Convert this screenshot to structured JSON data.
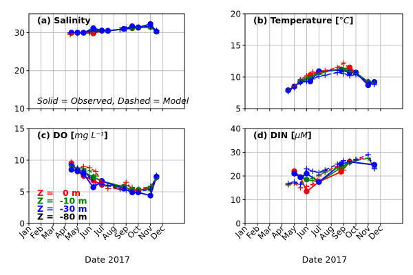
{
  "figure": {
    "note": "Solid = Observed, Dashed = Model",
    "xlabel": "Date 2017",
    "legend": [
      {
        "label": "Z =   0 m",
        "color": "#ff0000"
      },
      {
        "label": "Z =  -10 m",
        "color": "#008000"
      },
      {
        "label": "Z =  -30 m",
        "color": "#0000ff"
      },
      {
        "label": "Z =  -80 m",
        "color": "#000000"
      }
    ]
  },
  "chart_data": [
    {
      "type": "line",
      "title": "(a) Salinity",
      "unit": "",
      "xlabel": "",
      "ylabel": "",
      "x_ticks": [],
      "ylim": [
        10,
        35
      ],
      "y_ticks": [
        10,
        20,
        30
      ],
      "grid": true,
      "series": [
        {
          "name": "Z = 0 m",
          "style": "observed",
          "color": "#ff0000",
          "x": [
            3.5,
            4,
            4.5,
            5.3,
            6,
            6.5,
            7.8,
            8.5,
            9,
            10,
            10.5
          ],
          "y": [
            30,
            30,
            30,
            29.8,
            30.5,
            30.5,
            31,
            31.2,
            31.3,
            31.5,
            30.3
          ]
        },
        {
          "name": "Z = -10 m",
          "style": "observed",
          "color": "#008000",
          "x": [
            3.5,
            4,
            4.5,
            5.3,
            6,
            6.5,
            7.8,
            8.5,
            9,
            10,
            10.5
          ],
          "y": [
            30,
            30,
            30,
            30.8,
            30.6,
            30.5,
            31,
            31.2,
            31.4,
            31.5,
            30.3
          ]
        },
        {
          "name": "Z = -30 m",
          "style": "observed",
          "color": "#0000ff",
          "x": [
            3.5,
            4,
            4.5,
            5.3,
            6,
            6.5,
            7.8,
            8.5,
            9,
            10,
            10.5
          ],
          "y": [
            30,
            30,
            30,
            31.2,
            30.6,
            30.5,
            31,
            31.7,
            31.4,
            32.3,
            30.3
          ]
        },
        {
          "name": "Z = 0 m",
          "style": "model",
          "color": "#ff0000",
          "x": [
            3.4,
            4,
            4.5,
            5,
            5.5,
            6,
            6.5,
            7.5,
            8,
            8.5,
            9,
            10,
            10.5
          ],
          "y": [
            29.5,
            29.8,
            30,
            30,
            30.3,
            30.5,
            30.5,
            30.8,
            31,
            31.2,
            31.3,
            31.5,
            30.5
          ]
        },
        {
          "name": "Z = -10 m",
          "style": "model",
          "color": "#008000",
          "x": [
            3.4,
            4,
            4.5,
            5,
            5.5,
            6,
            6.5,
            7.5,
            8,
            8.5,
            9,
            10,
            10.5
          ],
          "y": [
            29.8,
            29.8,
            30,
            30.2,
            30.3,
            30.5,
            30.5,
            30.8,
            31,
            31.2,
            31.3,
            31.4,
            30.5
          ]
        },
        {
          "name": "Z = -30 m",
          "style": "model",
          "color": "#0000ff",
          "x": [
            3.4,
            4,
            4.5,
            5,
            5.5,
            6,
            6.5,
            7.5,
            8,
            8.5,
            9,
            10,
            10.5
          ],
          "y": [
            30,
            30,
            30,
            30.3,
            30.4,
            30.5,
            30.6,
            30.8,
            31,
            31.3,
            31.5,
            31.7,
            30.6
          ]
        }
      ]
    },
    {
      "type": "line",
      "title": "(b) Temperature [°C]",
      "unit": "°C",
      "xlabel": "",
      "ylabel": "",
      "x_ticks": [],
      "ylim": [
        5,
        20
      ],
      "y_ticks": [
        5,
        10,
        15,
        20
      ],
      "grid": true,
      "series": [
        {
          "name": "Z = 0 m",
          "style": "observed",
          "color": "#ff0000",
          "x": [
            3.5,
            4,
            4.5,
            5.3,
            6,
            7.8,
            8.5,
            9,
            10,
            10.5
          ],
          "y": [
            7.9,
            8.5,
            9.3,
            10.3,
            10.8,
            11.2,
            11.5,
            10.7,
            9.2,
            9.2
          ]
        },
        {
          "name": "Z = -10 m",
          "style": "observed",
          "color": "#008000",
          "x": [
            3.5,
            4,
            4.5,
            5.3,
            6,
            7.8,
            8.5,
            9,
            10,
            10.5
          ],
          "y": [
            7.9,
            8.5,
            9.3,
            9.8,
            10.9,
            11.2,
            11.0,
            10.7,
            9.2,
            9.2
          ]
        },
        {
          "name": "Z = -30 m",
          "style": "observed",
          "color": "#0000ff",
          "x": [
            3.5,
            4,
            4.5,
            5.3,
            6,
            7.8,
            8.5,
            9,
            10,
            10.5
          ],
          "y": [
            7.9,
            8.5,
            9.3,
            9.3,
            10.9,
            11.1,
            10.7,
            10.7,
            8.7,
            9.2
          ]
        },
        {
          "name": "Z = 0 m",
          "style": "model",
          "color": "#ff0000",
          "x": [
            3.5,
            4,
            4.5,
            5,
            5.5,
            6,
            6.5,
            7.5,
            8,
            8.5,
            9,
            10,
            10.5
          ],
          "y": [
            7.8,
            8.5,
            9.6,
            10.2,
            10.8,
            10.6,
            11,
            11.5,
            12.2,
            11.3,
            10.6,
            9.1,
            9
          ]
        },
        {
          "name": "Z = -10 m",
          "style": "model",
          "color": "#008000",
          "x": [
            3.5,
            4,
            4.5,
            5,
            5.5,
            6,
            6.5,
            7.5,
            8,
            8.5,
            9,
            10,
            10.5
          ],
          "y": [
            7.8,
            8.4,
            9.4,
            9.8,
            10.2,
            10.4,
            10.8,
            11.2,
            11.4,
            10.9,
            10.6,
            9.3,
            9
          ]
        },
        {
          "name": "Z = -30 m",
          "style": "model",
          "color": "#0000ff",
          "x": [
            3.5,
            4,
            4.5,
            5,
            5.5,
            6,
            6.5,
            7.5,
            8,
            8.5,
            9,
            10,
            10.5
          ],
          "y": [
            7.7,
            8.3,
            9.1,
            9.3,
            9.7,
            10.1,
            10.3,
            10.7,
            10.5,
            10.2,
            10.4,
            9.2,
            8.8
          ]
        }
      ]
    },
    {
      "type": "line",
      "title": "(c) DO [mg L⁻¹]",
      "unit": "mg L⁻¹",
      "xlabel": "",
      "ylabel": "",
      "x_ticks": [
        "Jan",
        "Feb",
        "Mar",
        "Apr",
        "May",
        "Jun",
        "Jul",
        "Aug",
        "Sep",
        "Oct",
        "Nov",
        "Dec"
      ],
      "ylim": [
        0,
        15
      ],
      "y_ticks": [
        0,
        5,
        10,
        15
      ],
      "grid": true,
      "series": [
        {
          "name": "Z = 0 m",
          "style": "observed",
          "color": "#ff0000",
          "x": [
            3.5,
            4,
            4.5,
            5.3,
            6,
            7.8,
            8.5,
            9,
            10,
            10.5
          ],
          "y": [
            9.5,
            8.2,
            7.5,
            6.8,
            6.1,
            5.8,
            5.3,
            5.3,
            5.5,
            7.3
          ]
        },
        {
          "name": "Z = -10 m",
          "style": "observed",
          "color": "#008000",
          "x": [
            3.5,
            4,
            4.5,
            5.3,
            6,
            7.8,
            8.5,
            9,
            10,
            10.5
          ],
          "y": [
            9.2,
            8.5,
            8.2,
            7.3,
            6.7,
            5.8,
            5.2,
            5.2,
            5.5,
            7.3
          ]
        },
        {
          "name": "Z = -30 m",
          "style": "observed",
          "color": "#0000ff",
          "x": [
            3.5,
            4,
            4.5,
            5.3,
            6,
            7.8,
            8.5,
            9,
            10,
            10.5
          ],
          "y": [
            8.5,
            8.3,
            7.8,
            5.7,
            6.7,
            5.5,
            4.9,
            4.9,
            4.4,
            7.4
          ]
        },
        {
          "name": "Z = 0 m",
          "style": "model",
          "color": "#ff0000",
          "x": [
            3.5,
            4,
            4.5,
            5,
            5.5,
            6,
            6.5,
            7.5,
            8,
            8.5,
            9,
            10,
            10.5
          ],
          "y": [
            9.7,
            8.6,
            9,
            8.8,
            8.2,
            6.5,
            5.5,
            5.5,
            6.5,
            5.4,
            5.1,
            5.9,
            7.2
          ]
        },
        {
          "name": "Z = -10 m",
          "style": "model",
          "color": "#008000",
          "x": [
            3.5,
            4,
            4.5,
            5,
            5.5,
            6,
            6.5,
            7.5,
            8,
            8.5,
            9,
            10,
            10.5
          ],
          "y": [
            9.5,
            8.8,
            8.7,
            8.3,
            7.5,
            6.3,
            5.9,
            5.7,
            6,
            5.7,
            5.5,
            5.8,
            7.2
          ]
        },
        {
          "name": "Z = -30 m",
          "style": "model",
          "color": "#0000ff",
          "x": [
            3.5,
            4,
            4.5,
            5,
            5.5,
            6,
            6.5,
            7.5,
            8,
            8.5,
            9,
            10,
            10.5
          ],
          "y": [
            9.3,
            8.6,
            8.3,
            7.3,
            6.2,
            6.2,
            6,
            5.4,
            5.3,
            5,
            5,
            5.4,
            7.6
          ]
        }
      ]
    },
    {
      "type": "line",
      "title": "(d) DIN [µM]",
      "unit": "µM",
      "xlabel": "",
      "ylabel": "",
      "x_ticks": [
        "Jan",
        "Feb",
        "Mar",
        "Apr",
        "May",
        "Jun",
        "Jul",
        "Aug",
        "Sep",
        "Oct",
        "Nov",
        "Dec"
      ],
      "ylim": [
        0,
        40
      ],
      "y_ticks": [
        0,
        10,
        20,
        30,
        40
      ],
      "grid": true,
      "series": [
        {
          "name": "Z = 0 m",
          "style": "observed",
          "color": "#ff0000",
          "x": [
            4,
            4.5,
            5,
            6,
            7.8,
            8.5,
            10.5
          ],
          "y": [
            22,
            19.5,
            13.5,
            17.5,
            21.8,
            26,
            24.7
          ]
        },
        {
          "name": "Z = -10 m",
          "style": "observed",
          "color": "#008000",
          "x": [
            4,
            4.5,
            5,
            6,
            7.8,
            8.5,
            10.5
          ],
          "y": [
            21,
            19.5,
            18.5,
            17.5,
            23.5,
            26,
            24.7
          ]
        },
        {
          "name": "Z = -30 m",
          "style": "observed",
          "color": "#0000ff",
          "x": [
            4,
            4.5,
            5,
            6,
            7.8,
            8.5,
            10.5
          ],
          "y": [
            21,
            19.5,
            21,
            17.5,
            25,
            26,
            24.7
          ]
        },
        {
          "name": "Z = 0 m",
          "style": "model",
          "color": "#ff0000",
          "x": [
            3.5,
            4,
            4.5,
            5,
            5.5,
            6,
            6.5,
            7.5,
            8,
            8.5,
            9,
            10,
            10.5
          ],
          "y": [
            16.2,
            17,
            15,
            15.5,
            16.5,
            20,
            22,
            24,
            22.5,
            26.5,
            27,
            27.5,
            23.5
          ]
        },
        {
          "name": "Z = -10 m",
          "style": "model",
          "color": "#008000",
          "x": [
            3.5,
            4,
            4.5,
            5,
            5.5,
            6,
            6.5,
            7.5,
            8,
            8.5,
            9,
            10,
            10.5
          ],
          "y": [
            16.5,
            17,
            16.5,
            18.5,
            19,
            20.5,
            21.5,
            23.5,
            24,
            25.5,
            26.5,
            27.5,
            23.5
          ]
        },
        {
          "name": "Z = -30 m",
          "style": "model",
          "color": "#0000ff",
          "x": [
            3.5,
            4,
            4.5,
            5,
            5.5,
            6,
            6.5,
            7.5,
            8,
            8.5,
            9,
            10,
            10.5
          ],
          "y": [
            16.8,
            17.5,
            16.5,
            23,
            22,
            21.5,
            22.5,
            25,
            26.5,
            26,
            27,
            29,
            23
          ]
        }
      ]
    }
  ]
}
